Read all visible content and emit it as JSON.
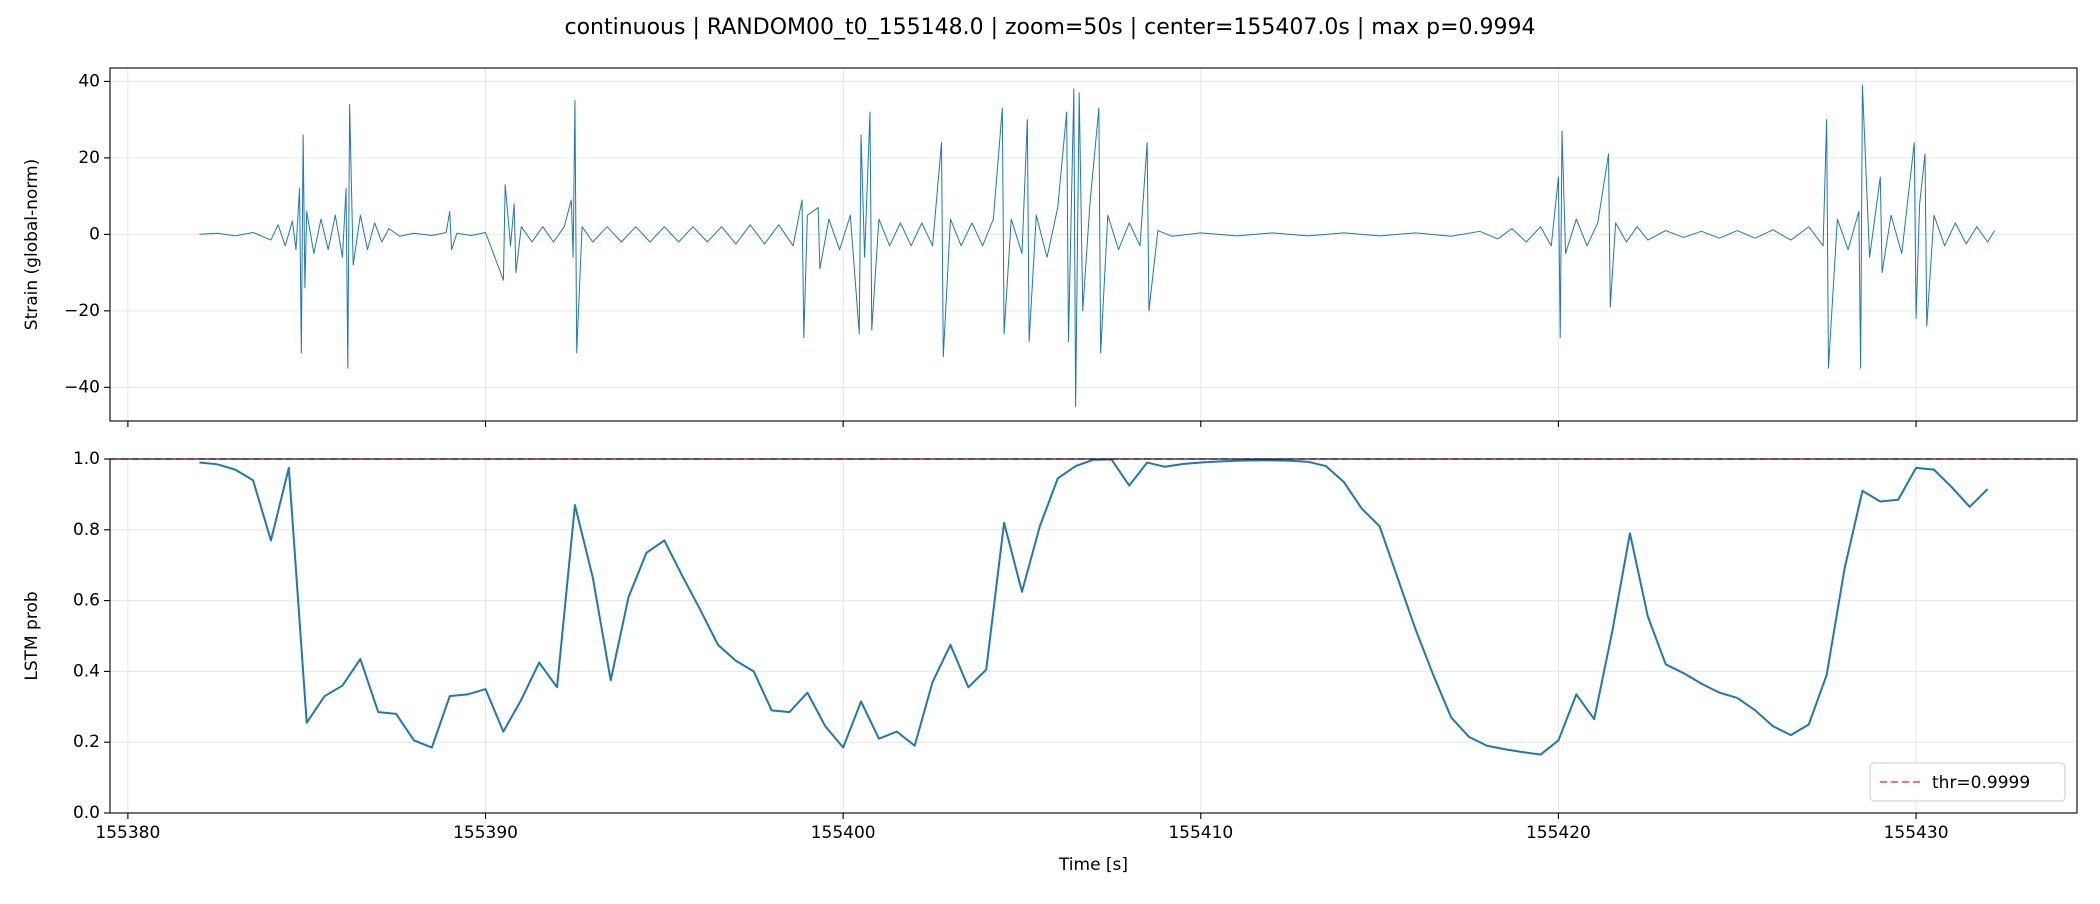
{
  "title": "continuous | RANDOM00_t0_155148.0 | zoom=50s | center=155407.0s | max p=0.9994",
  "chart_data": [
    {
      "type": "line",
      "ylabel": "Strain (global-norm)",
      "grid": true,
      "show_xtick_labels": false,
      "xlim": [
        155379.5,
        155434.5
      ],
      "ylim": [
        -48.8,
        43.5
      ],
      "xticks": [
        155380,
        155390,
        155400,
        155410,
        155420,
        155430
      ],
      "yticks": [
        {
          "value": -40,
          "label": "−40"
        },
        {
          "value": -20,
          "label": "−20"
        },
        0,
        20,
        40
      ],
      "series": [
        {
          "color": "#1f77b4",
          "x": [
            155382.0,
            155382.5,
            155383.0,
            155383.5,
            155384.0,
            155384.2,
            155384.4,
            155384.6,
            155384.7,
            155384.8,
            155384.85,
            155384.9,
            155384.95,
            155385.0,
            155385.2,
            155385.4,
            155385.6,
            155385.8,
            155386.0,
            155386.1,
            155386.15,
            155386.2,
            155386.3,
            155386.5,
            155386.7,
            155386.9,
            155387.1,
            155387.3,
            155387.6,
            155388.0,
            155388.5,
            155388.9,
            155389.0,
            155389.05,
            155389.2,
            155389.6,
            155390.0,
            155390.5,
            155390.55,
            155390.7,
            155390.8,
            155390.85,
            155391.0,
            155391.3,
            155391.6,
            155391.9,
            155392.2,
            155392.4,
            155392.45,
            155392.5,
            155392.55,
            155392.7,
            155393.0,
            155393.4,
            155393.8,
            155394.2,
            155394.6,
            155395.0,
            155395.4,
            155395.8,
            155396.2,
            155396.6,
            155397.0,
            155397.4,
            155397.8,
            155398.2,
            155398.6,
            155398.85,
            155398.9,
            155399.0,
            155399.3,
            155399.35,
            155399.6,
            155399.9,
            155400.2,
            155400.45,
            155400.5,
            155400.6,
            155400.75,
            155400.8,
            155401.0,
            155401.3,
            155401.6,
            155401.9,
            155402.2,
            155402.5,
            155402.75,
            155402.8,
            155403.0,
            155403.3,
            155403.6,
            155403.9,
            155404.2,
            155404.45,
            155404.5,
            155404.7,
            155405.0,
            155405.15,
            155405.2,
            155405.4,
            155405.7,
            155406.0,
            155406.25,
            155406.3,
            155406.45,
            155406.5,
            155406.6,
            155406.7,
            155406.9,
            155407.15,
            155407.2,
            155407.4,
            155407.7,
            155408.0,
            155408.3,
            155408.5,
            155408.55,
            155408.8,
            155409.2,
            155410.0,
            155411.0,
            155412.0,
            155413.0,
            155414.0,
            155415.0,
            155416.0,
            155417.0,
            155417.8,
            155418.3,
            155418.7,
            155419.1,
            155419.5,
            155419.8,
            155420.0,
            155420.05,
            155420.1,
            155420.2,
            155420.5,
            155420.8,
            155421.1,
            155421.4,
            155421.45,
            155421.6,
            155421.9,
            155422.2,
            155422.5,
            155423.0,
            155423.5,
            155424.0,
            155424.5,
            155425.0,
            155425.5,
            155426.0,
            155426.5,
            155427.0,
            155427.4,
            155427.5,
            155427.55,
            155427.8,
            155428.1,
            155428.4,
            155428.45,
            155428.5,
            155428.7,
            155429.0,
            155429.05,
            155429.3,
            155429.6,
            155429.95,
            155430.0,
            155430.1,
            155430.25,
            155430.3,
            155430.5,
            155430.8,
            155431.1,
            155431.4,
            155431.7,
            155432.0,
            155432.2
          ],
          "values": [
            0,
            0.3,
            -0.4,
            0.5,
            -1.5,
            2.5,
            -3,
            3.5,
            -4,
            12,
            -31,
            26,
            -14,
            6,
            -5,
            4,
            -4,
            5,
            -6,
            12,
            -35,
            34,
            -8,
            5,
            -4,
            3,
            -2,
            1.5,
            -0.5,
            0.3,
            -0.3,
            0.5,
            6,
            -4,
            0.3,
            -0.3,
            0.5,
            -12,
            13,
            -3,
            8,
            -10,
            2,
            -2,
            2,
            -2,
            2,
            9,
            -6,
            35,
            -31,
            2,
            -2,
            2,
            -2,
            2,
            -2,
            2,
            -2,
            2,
            -2,
            2,
            -2.5,
            2.5,
            -2.5,
            2.5,
            -3,
            9,
            -27,
            5,
            7,
            -9,
            4,
            -4,
            5,
            -26,
            26,
            -6,
            32,
            -25,
            4,
            -3,
            3,
            -3,
            3,
            -3,
            24,
            -32,
            4,
            -3,
            3,
            -3,
            4,
            33,
            -26,
            4,
            -5,
            30,
            -28,
            5,
            -6,
            7,
            32,
            -28,
            38,
            -45,
            37,
            -20,
            8,
            33,
            -31,
            5,
            -4,
            3,
            -3,
            24,
            -20,
            1,
            -0.5,
            0.4,
            -0.4,
            0.4,
            -0.4,
            0.4,
            -0.4,
            0.4,
            -0.5,
            0.8,
            -1.2,
            1.5,
            -2,
            2,
            -3,
            15,
            -27,
            27,
            -5,
            4,
            -3,
            3,
            21,
            -19,
            3,
            -2,
            2,
            -1.5,
            1,
            -0.8,
            0.8,
            -1,
            1,
            -1,
            1.2,
            -1.5,
            2,
            -3,
            30,
            -35,
            4,
            -4,
            6,
            -35,
            39,
            -6,
            15,
            -10,
            5,
            -5,
            24,
            -22,
            8,
            21,
            -24,
            5,
            -3,
            3,
            -2.5,
            2,
            -2,
            1
          ]
        }
      ]
    },
    {
      "type": "line",
      "ylabel": "LSTM prob",
      "xlabel": "Time [s]",
      "grid": true,
      "show_xtick_labels": true,
      "xlim": [
        155379.5,
        155434.5
      ],
      "ylim": [
        0,
        1
      ],
      "xticks": [
        155380,
        155390,
        155400,
        155410,
        155420,
        155430
      ],
      "yticks": [
        {
          "value": 0,
          "label": "0.0"
        },
        0.2,
        0.4,
        0.6,
        0.8,
        {
          "value": 1,
          "label": "1.0"
        }
      ],
      "threshold": {
        "value": 0.9999,
        "label": "thr=0.9999",
        "color": "#ff4444"
      },
      "legend": "lower right",
      "series": [
        {
          "color": "#1f77b4",
          "x": [
            155382.0,
            155382.5,
            155383.0,
            155383.5,
            155384.0,
            155384.5,
            155385.0,
            155385.5,
            155386.0,
            155386.5,
            155387.0,
            155387.5,
            155388.0,
            155388.5,
            155389.0,
            155389.5,
            155390.0,
            155390.5,
            155391.0,
            155391.5,
            155392.0,
            155392.5,
            155393.0,
            155393.5,
            155394.0,
            155394.5,
            155395.0,
            155395.5,
            155396.0,
            155396.5,
            155397.0,
            155397.5,
            155398.0,
            155398.5,
            155399.0,
            155399.5,
            155400.0,
            155400.5,
            155401.0,
            155401.5,
            155402.0,
            155402.5,
            155403.0,
            155403.5,
            155404.0,
            155404.5,
            155405.0,
            155405.5,
            155406.0,
            155406.5,
            155407.0,
            155407.5,
            155408.0,
            155408.5,
            155409.0,
            155409.5,
            155410.0,
            155410.5,
            155411.0,
            155411.5,
            155412.0,
            155412.5,
            155413.0,
            155413.5,
            155414.0,
            155414.5,
            155415.0,
            155415.5,
            155416.0,
            155416.5,
            155417.0,
            155417.5,
            155418.0,
            155418.5,
            155419.0,
            155419.5,
            155420.0,
            155420.5,
            155421.0,
            155421.5,
            155422.0,
            155422.5,
            155423.0,
            155423.5,
            155424.0,
            155424.5,
            155425.0,
            155425.5,
            155426.0,
            155426.5,
            155427.0,
            155427.5,
            155428.0,
            155428.5,
            155429.0,
            155429.5,
            155430.0,
            155430.5,
            155431.0,
            155431.5,
            155432.0
          ],
          "values": [
            0.99,
            0.985,
            0.97,
            0.94,
            0.77,
            0.975,
            0.255,
            0.33,
            0.36,
            0.435,
            0.285,
            0.28,
            0.205,
            0.185,
            0.33,
            0.335,
            0.35,
            0.23,
            0.32,
            0.425,
            0.355,
            0.87,
            0.665,
            0.375,
            0.61,
            0.735,
            0.77,
            0.67,
            0.575,
            0.475,
            0.43,
            0.4,
            0.29,
            0.285,
            0.34,
            0.245,
            0.185,
            0.315,
            0.21,
            0.23,
            0.19,
            0.37,
            0.475,
            0.355,
            0.405,
            0.82,
            0.625,
            0.81,
            0.945,
            0.98,
            0.998,
            0.999,
            0.925,
            0.99,
            0.978,
            0.986,
            0.99,
            0.993,
            0.995,
            0.996,
            0.996,
            0.995,
            0.992,
            0.98,
            0.935,
            0.86,
            0.81,
            0.665,
            0.52,
            0.39,
            0.27,
            0.215,
            0.19,
            0.18,
            0.172,
            0.165,
            0.205,
            0.335,
            0.265,
            0.51,
            0.79,
            0.555,
            0.42,
            0.395,
            0.365,
            0.34,
            0.325,
            0.29,
            0.245,
            0.22,
            0.25,
            0.39,
            0.69,
            0.91,
            0.88,
            0.885,
            0.975,
            0.97,
            0.92,
            0.865,
            0.915
          ]
        }
      ]
    }
  ]
}
